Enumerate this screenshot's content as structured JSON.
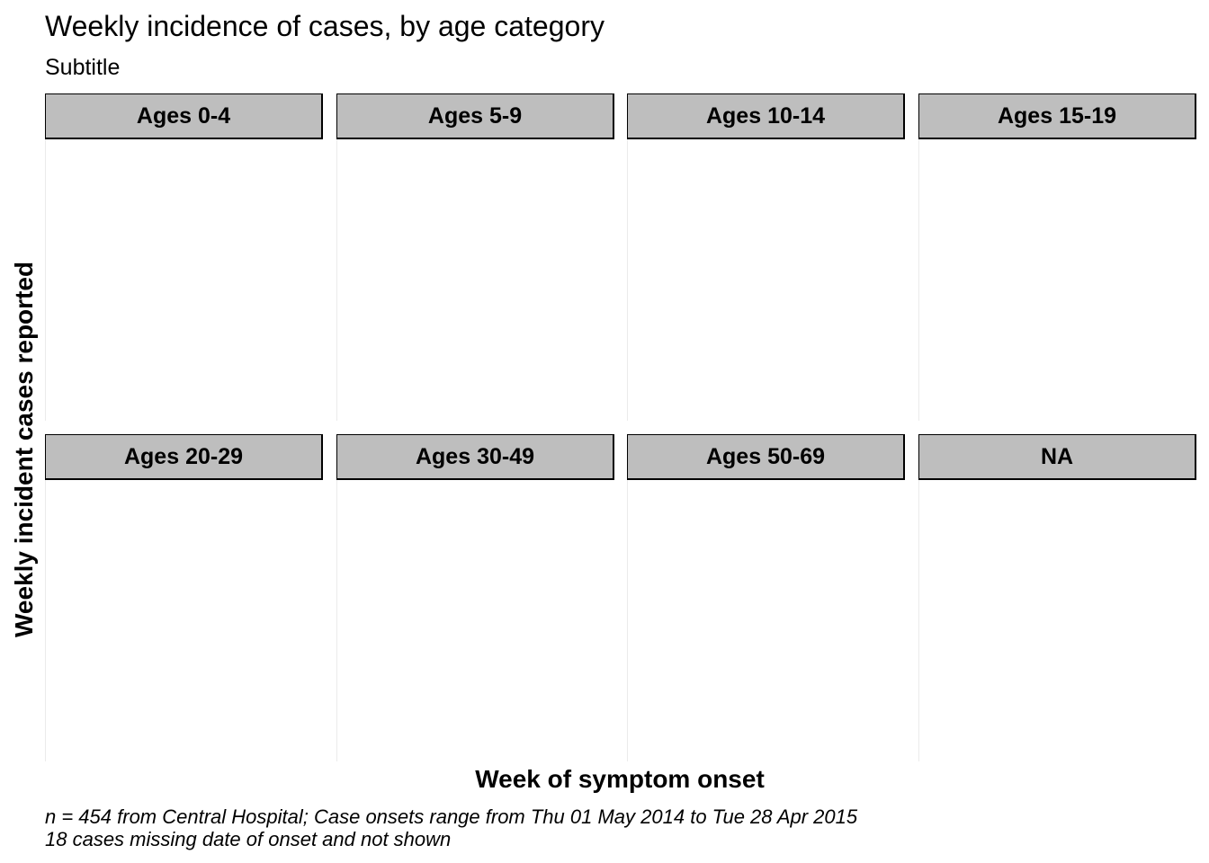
{
  "chart_data": {
    "type": "bar",
    "title": "Weekly incidence of cases, by age category",
    "subtitle": "Subtitle",
    "xlabel": "Week of symptom onset",
    "ylabel": "Weekly incident cases reported",
    "caption": [
      "n = 454 from Central Hospital; Case onsets range from Thu 01 May 2014 to Tue 28 Apr 2015",
      "18 cases missing date of onset and not shown"
    ],
    "facets": [
      {
        "label": "Ages 0-4",
        "values": []
      },
      {
        "label": "Ages 5-9",
        "values": []
      },
      {
        "label": "Ages 10-14",
        "values": []
      },
      {
        "label": "Ages 15-19",
        "values": []
      },
      {
        "label": "Ages 20-29",
        "values": []
      },
      {
        "label": "Ages 30-49",
        "values": []
      },
      {
        "label": "Ages 50-69",
        "values": []
      },
      {
        "label": "NA",
        "values": []
      }
    ],
    "facet_layout": {
      "rows": 2,
      "cols": 4
    },
    "grid": false,
    "legend": "none",
    "colors": {
      "strip_fill": "#bebebe",
      "strip_border": "#000000",
      "panel_divider": "#ebebeb"
    }
  }
}
